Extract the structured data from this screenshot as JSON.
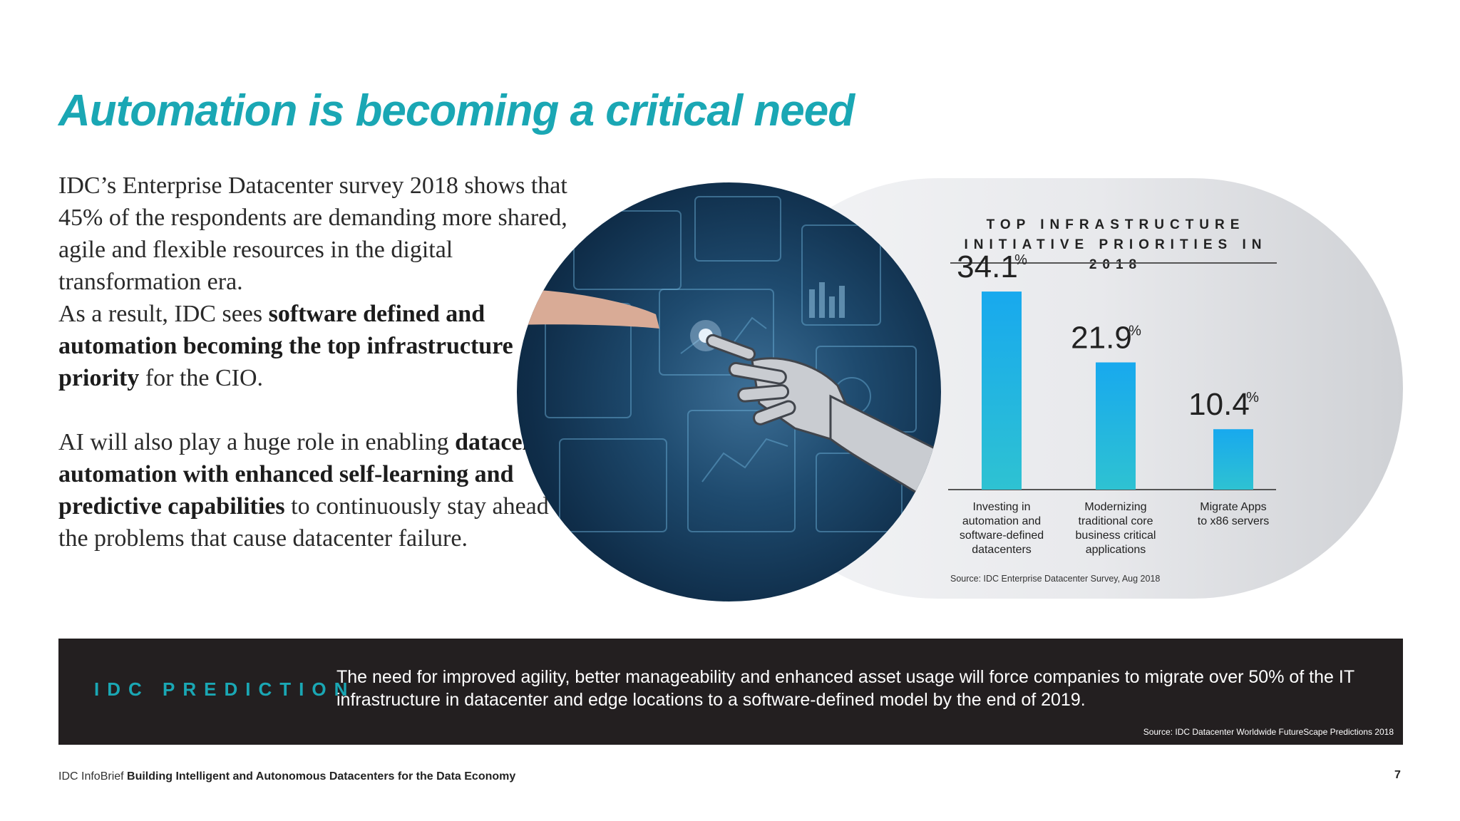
{
  "title": "Automation is becoming a critical need",
  "intro": {
    "t1": "IDC’s Enterprise Datacenter survey 2018 shows that 45% of the respondents are demanding more shared, agile and  flexible resources in the digital transformation era.",
    "t2": "As a result, IDC sees ",
    "t3": "software defined and automation becoming the top infrastructure priority",
    "t4": " for the CIO.",
    "t5": "AI will also play a huge role in enabling ",
    "t6": "datacenter automation with enhanced self-learning and predictive capabilities",
    "t7": " to continuously stay ahead of the problems that cause datacenter failure."
  },
  "chart_data": {
    "type": "bar",
    "title": "TOP INFRASTRUCTURE INITIATIVE PRIORITIES IN 2018",
    "categories": [
      "Investing in automation and software-defined datacenters",
      "Modernizing traditional core business critical applications",
      "Migrate Apps to x86 servers"
    ],
    "category_lines": [
      [
        "Investing in",
        "automation and",
        "software-defined",
        "datacenters"
      ],
      [
        "Modernizing",
        "traditional core",
        "business critical",
        "applications"
      ],
      [
        "Migrate Apps",
        "to x86 servers"
      ]
    ],
    "values": [
      34.1,
      21.9,
      10.4
    ],
    "value_labels": [
      "34.1",
      "21.9",
      "10.4"
    ],
    "unit": "%",
    "source": "Source: IDC Enterprise Datacenter Survey, Aug 2018"
  },
  "prediction": {
    "label": "IDC PREDICTION",
    "text": "The need for improved agility, better manageability and enhanced asset usage will force companies to migrate over 50% of the IT infrastructure in datacenter and edge locations to a software-defined model by the end of 2019.",
    "source": "Source: IDC Datacenter Worldwide FutureScape Predictions 2018"
  },
  "footer": {
    "brand": "IDC InfoBrief ",
    "title": "Building Intelligent and Autonomous Datacenters for the Data Economy",
    "page": "7"
  },
  "colors": {
    "accent": "#1aa7b4",
    "bar_top": "#18a9ee",
    "bar_bottom": "#2ec2d2",
    "banner": "#231f20"
  },
  "icons": [
    "robot-hand-touch-image"
  ]
}
